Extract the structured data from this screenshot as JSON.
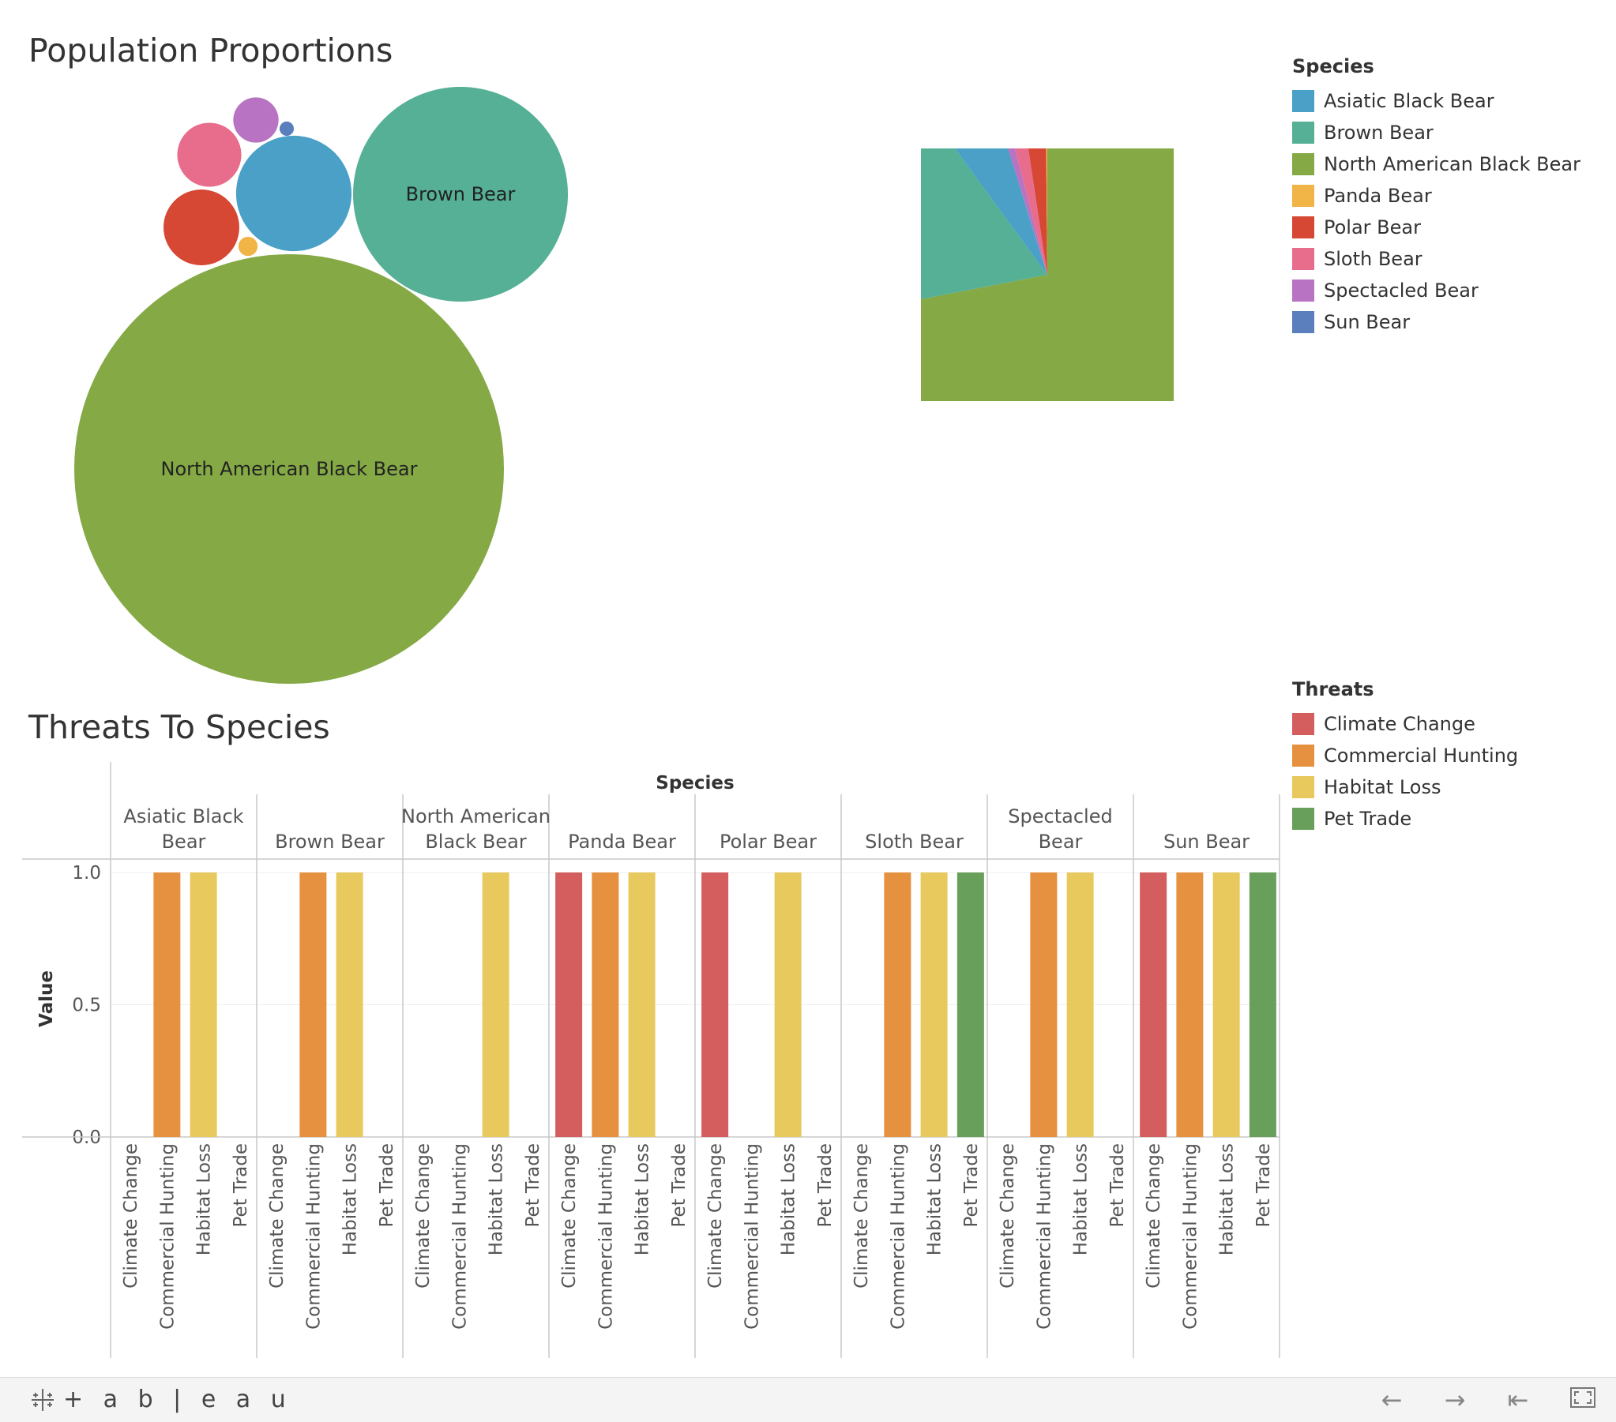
{
  "population": {
    "title": "Population Proportions",
    "bubble_labels": [
      "Brown Bear",
      "North American Black Bear"
    ]
  },
  "species_legend": {
    "title": "Species",
    "items": [
      {
        "label": "Asiatic Black Bear",
        "color": "#4aa0c6"
      },
      {
        "label": "Brown Bear",
        "color": "#55b095"
      },
      {
        "label": "North American Black Bear",
        "color": "#84a945"
      },
      {
        "label": "Panda Bear",
        "color": "#f0b447"
      },
      {
        "label": "Polar Bear",
        "color": "#d64734"
      },
      {
        "label": "Sloth Bear",
        "color": "#e86d8d"
      },
      {
        "label": "Spectacled Bear",
        "color": "#b873c2"
      },
      {
        "label": "Sun Bear",
        "color": "#5a7fbc"
      }
    ]
  },
  "threats_legend": {
    "title": "Threats",
    "items": [
      {
        "label": "Climate Change",
        "color": "#d45d5d"
      },
      {
        "label": "Commercial Hunting",
        "color": "#e69140"
      },
      {
        "label": "Habitat Loss",
        "color": "#e7c95e"
      },
      {
        "label": "Pet Trade",
        "color": "#689f5a"
      }
    ]
  },
  "threats": {
    "title": "Threats To Species",
    "column_header": "Species",
    "ylabel": "Value",
    "yticks": [
      "1.0",
      "0.5",
      "0.0"
    ]
  },
  "chart_data": [
    {
      "type": "bubble",
      "title": "Population Proportions",
      "series": [
        {
          "name": "North American Black Bear",
          "value": 900000
        },
        {
          "name": "Brown Bear",
          "value": 225000
        },
        {
          "name": "Asiatic Black Bear",
          "value": 65000
        },
        {
          "name": "Polar Bear",
          "value": 28000
        },
        {
          "name": "Sloth Bear",
          "value": 20000
        },
        {
          "name": "Spectacled Bear",
          "value": 10000
        },
        {
          "name": "Panda Bear",
          "value": 1800
        },
        {
          "name": "Sun Bear",
          "value": 1000
        }
      ]
    },
    {
      "type": "pie",
      "slices": [
        {
          "name": "North American Black Bear",
          "value": 900000
        },
        {
          "name": "Brown Bear",
          "value": 225000
        },
        {
          "name": "Asiatic Black Bear",
          "value": 65000
        },
        {
          "name": "Sun Bear",
          "value": 1000
        },
        {
          "name": "Spectacled Bear",
          "value": 10000
        },
        {
          "name": "Sloth Bear",
          "value": 20000
        },
        {
          "name": "Polar Bear",
          "value": 28000
        },
        {
          "name": "Panda Bear",
          "value": 1800
        }
      ]
    },
    {
      "type": "bar",
      "title": "Threats To Species",
      "xlabel": "Species",
      "ylabel": "Value",
      "ylim": [
        0,
        1
      ],
      "categories": [
        "Climate Change",
        "Commercial Hunting",
        "Habitat Loss",
        "Pet Trade"
      ],
      "groups": [
        {
          "name": "Asiatic Black Bear",
          "header": [
            "Asiatic Black",
            "Bear"
          ],
          "values": [
            0,
            1,
            1,
            0
          ]
        },
        {
          "name": "Brown Bear",
          "header": [
            "Brown Bear"
          ],
          "values": [
            0,
            1,
            1,
            0
          ]
        },
        {
          "name": "North American Black Bear",
          "header": [
            "North American",
            "Black Bear"
          ],
          "values": [
            0,
            0,
            1,
            0
          ]
        },
        {
          "name": "Panda Bear",
          "header": [
            "Panda Bear"
          ],
          "values": [
            1,
            1,
            1,
            0
          ]
        },
        {
          "name": "Polar Bear",
          "header": [
            "Polar Bear"
          ],
          "values": [
            1,
            0,
            1,
            0
          ]
        },
        {
          "name": "Sloth Bear",
          "header": [
            "Sloth Bear"
          ],
          "values": [
            0,
            1,
            1,
            1
          ]
        },
        {
          "name": "Spectacled Bear",
          "header": [
            "Spectacled",
            "Bear"
          ],
          "values": [
            0,
            1,
            1,
            0
          ]
        },
        {
          "name": "Sun Bear",
          "header": [
            "Sun Bear"
          ],
          "values": [
            1,
            1,
            1,
            1
          ]
        }
      ]
    }
  ],
  "footer": {
    "logo_text": "+ a b | e a u",
    "back_icon": "arrow-left-icon",
    "forward_icon": "arrow-right-icon",
    "reset_icon": "revert-icon",
    "fullscreen_icon": "fullscreen-icon"
  }
}
